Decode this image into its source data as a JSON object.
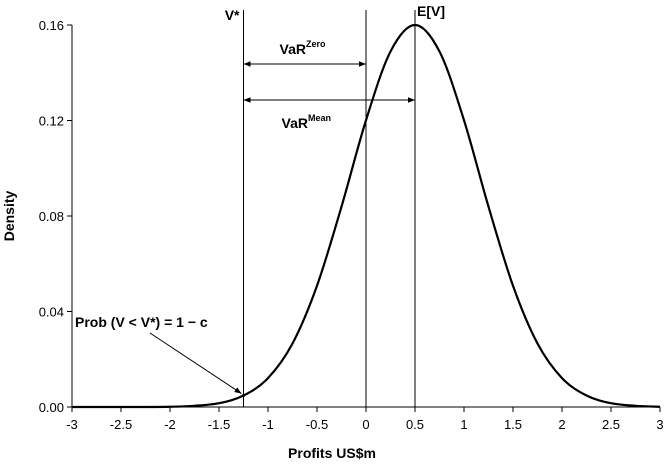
{
  "chart_data": {
    "type": "line",
    "x_label": "Profits US$m",
    "y_label": "Density",
    "x": [
      -3,
      -2.75,
      -2.5,
      -2.25,
      -2,
      -1.75,
      -1.5,
      -1.25,
      -1,
      -0.75,
      -0.5,
      -0.25,
      0,
      0.25,
      0.5,
      0.75,
      1,
      1.25,
      1.5,
      1.75,
      2,
      2.25,
      2.5,
      2.75,
      3
    ],
    "series": [
      {
        "color": "#000000",
        "values": [
          0,
          0,
          0,
          0,
          0.0001,
          0.0005,
          0.0016,
          0.0048,
          0.0121,
          0.0266,
          0.0508,
          0.0839,
          0.1201,
          0.1489,
          0.16,
          0.1489,
          0.1201,
          0.0839,
          0.0508,
          0.0266,
          0.0121,
          0.0048,
          0.0016,
          0.0005,
          0.0001
        ]
      }
    ],
    "xlim": [
      -3,
      3
    ],
    "ylim": [
      0,
      0.16
    ],
    "xticks": [
      -3,
      -2.5,
      -2,
      -1.5,
      -1,
      -0.5,
      0,
      0.5,
      1,
      1.5,
      2,
      2.5,
      3
    ],
    "yticks": [
      {
        "value": 0,
        "label": "0.00"
      },
      {
        "value": 0.04,
        "label": "0.04"
      },
      {
        "value": 0.08,
        "label": "0.08"
      },
      {
        "value": 0.12,
        "label": "0.12"
      },
      {
        "value": 0.16,
        "label": "0.16"
      }
    ],
    "grid": false,
    "annotations": {
      "vlines": [
        {
          "x": -1.25,
          "label": "V*"
        },
        {
          "x": 0
        },
        {
          "x": 0.5,
          "label": "E[V]"
        }
      ],
      "var_zero": {
        "text": "VaR",
        "sup": "Zero"
      },
      "var_mean": {
        "text": "VaR",
        "sup": "Mean"
      },
      "prob": {
        "text": "Prob (V < V*) = 1 − c"
      }
    }
  }
}
